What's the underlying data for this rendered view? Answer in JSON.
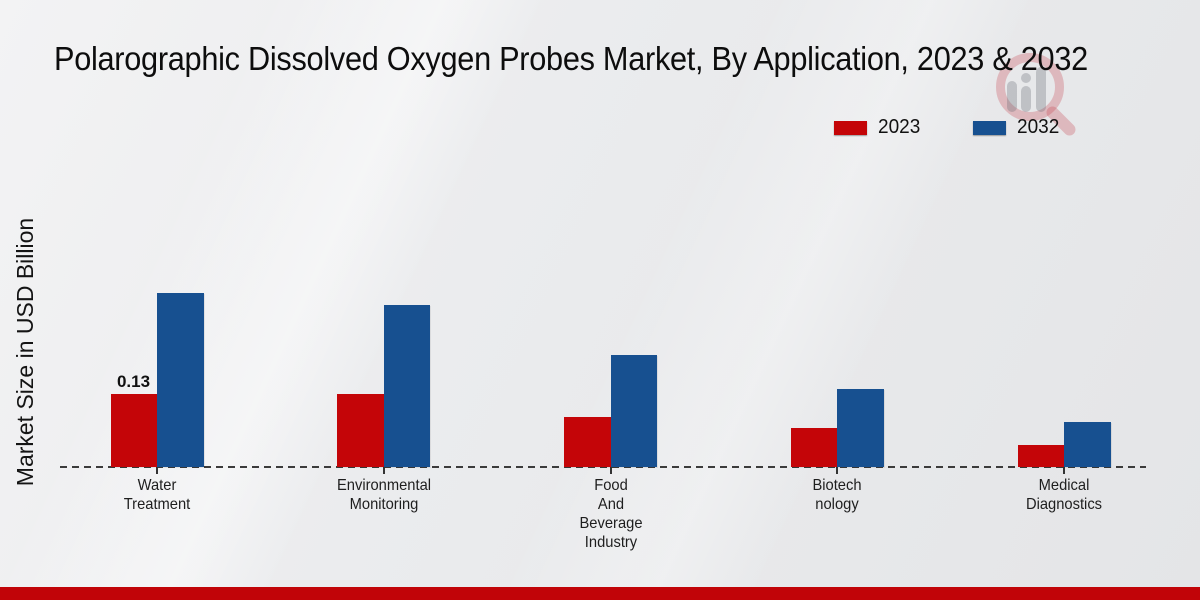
{
  "chart_data": {
    "type": "bar",
    "title": "Polarographic Dissolved Oxygen Probes Market, By Application, 2023 & 2032",
    "ylabel": "Market Size in USD Billion",
    "xlabel": "",
    "unit": "USD Billion",
    "categories": [
      "Water Treatment",
      "Environmental Monitoring",
      "Food And Beverage Industry",
      "Biotechnology",
      "Medical Diagnostics"
    ],
    "category_label_lines": [
      [
        "Water",
        "Treatment"
      ],
      [
        "Environmental",
        "Monitoring"
      ],
      [
        "Food",
        "And",
        "Beverage",
        "Industry"
      ],
      [
        "Biotech",
        "nology"
      ],
      [
        "Medical",
        "Diagnostics"
      ]
    ],
    "series": [
      {
        "name": "2023",
        "color": "#c40508",
        "values": [
          0.13,
          0.13,
          0.09,
          0.07,
          0.04
        ]
      },
      {
        "name": "2032",
        "color": "#175090",
        "values": [
          0.31,
          0.29,
          0.2,
          0.14,
          0.08
        ]
      }
    ],
    "point_labels": [
      {
        "series_index": 0,
        "category_index": 0,
        "text": "0.13"
      }
    ],
    "ylim": [
      0,
      0.35
    ],
    "grid": false,
    "legend_position": "top-right",
    "baseline_style": "dashed"
  },
  "colors": {
    "accent_red": "#c40508",
    "accent_blue": "#175090",
    "footer_band": "#c10408",
    "background": "#e9eaec",
    "baseline": "#3a3a3a"
  },
  "watermark": {
    "icon": "magnifier-bar-chart-logo"
  }
}
